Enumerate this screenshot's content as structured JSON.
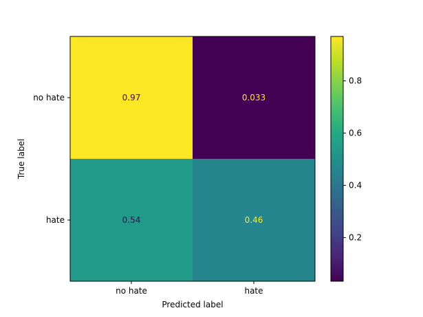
{
  "chart_data": {
    "type": "heatmap",
    "title": "",
    "xlabel": "Predicted label",
    "ylabel": "True label",
    "x_categories": [
      "no hate",
      "hate"
    ],
    "y_categories": [
      "no hate",
      "hate"
    ],
    "values": [
      [
        0.97,
        0.033
      ],
      [
        0.54,
        0.46
      ]
    ],
    "cell_labels": [
      [
        "0.97",
        "0.033"
      ],
      [
        "0.54",
        "0.46"
      ]
    ],
    "colormap": "viridis",
    "colorbar": {
      "range": [
        0.033,
        0.97
      ],
      "ticks": [
        0.2,
        0.4,
        0.6,
        0.8
      ],
      "tick_labels": [
        "0.2",
        "0.4",
        "0.6",
        "0.8"
      ]
    },
    "text_colors": {
      "on_dark": "#fde725",
      "on_light": "#440154"
    },
    "grid": false
  }
}
